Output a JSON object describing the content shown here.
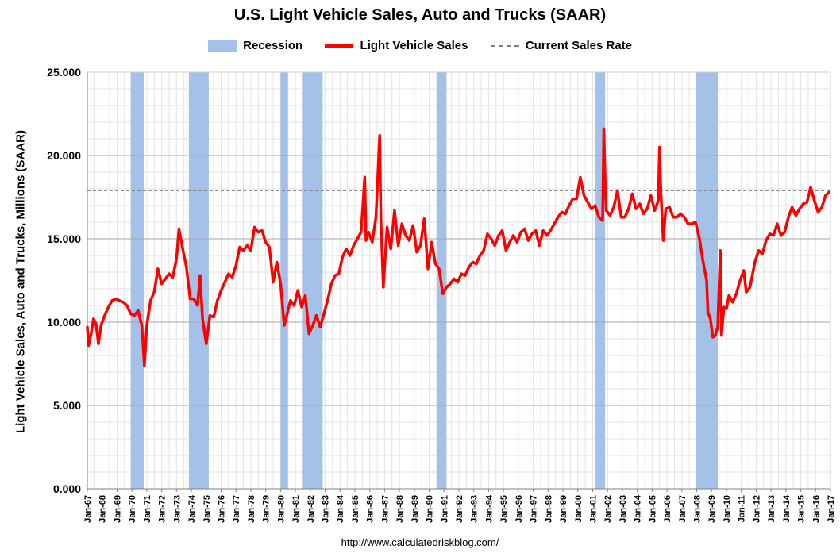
{
  "chart_data": {
    "type": "line",
    "title": "U.S. Light Vehicle Sales, Auto and Trucks (SAAR)",
    "ylabel": "Light Vehicle Sales, Auto and Trucks, Millions (SAAR)",
    "source": "http://www.calculatedriskblog.com/",
    "ylim": [
      0,
      25
    ],
    "xlim": [
      "1967-01",
      "2017-01"
    ],
    "y_ticks": [
      "0.000",
      "5.000",
      "10.000",
      "15.000",
      "20.000",
      "25.000"
    ],
    "x_ticks": [
      "Jan-67",
      "Jan-68",
      "Jan-69",
      "Jan-70",
      "Jan-71",
      "Jan-72",
      "Jan-73",
      "Jan-74",
      "Jan-75",
      "Jan-76",
      "Jan-77",
      "Jan-78",
      "Jan-79",
      "Jan-80",
      "Jan-81",
      "Jan-82",
      "Jan-83",
      "Jan-84",
      "Jan-85",
      "Jan-86",
      "Jan-87",
      "Jan-88",
      "Jan-89",
      "Jan-90",
      "Jan-91",
      "Jan-92",
      "Jan-93",
      "Jan-94",
      "Jan-95",
      "Jan-96",
      "Jan-97",
      "Jan-98",
      "Jan-99",
      "Jan-00",
      "Jan-01",
      "Jan-02",
      "Jan-03",
      "Jan-04",
      "Jan-05",
      "Jan-06",
      "Jan-07",
      "Jan-08",
      "Jan-09",
      "Jan-10",
      "Jan-11",
      "Jan-12",
      "Jan-13",
      "Jan-14",
      "Jan-15",
      "Jan-16",
      "Jan-17"
    ],
    "grid": true,
    "legend_position": "top",
    "legend": [
      "Recession",
      "Light Vehicle Sales",
      "Current Sales Rate"
    ],
    "colors": {
      "recession": "#a4c2e9",
      "sales": "#ff0000",
      "current": "#808080",
      "grid_major": "#a6a6a6",
      "grid_minor": "#e3e3e3"
    },
    "recessions": [
      {
        "start": "1969-12",
        "end": "1970-11"
      },
      {
        "start": "1973-11",
        "end": "1975-03"
      },
      {
        "start": "1980-01",
        "end": "1980-07"
      },
      {
        "start": "1981-07",
        "end": "1982-11"
      },
      {
        "start": "1990-07",
        "end": "1991-03"
      },
      {
        "start": "2001-03",
        "end": "2001-11"
      },
      {
        "start": "2007-12",
        "end": "2009-06"
      }
    ],
    "current_sales_rate": 17.9,
    "series": [
      {
        "name": "Light Vehicle Sales",
        "points": [
          [
            "1967-01",
            9.7
          ],
          [
            "1967-02",
            8.6
          ],
          [
            "1967-04",
            9.3
          ],
          [
            "1967-06",
            10.2
          ],
          [
            "1967-08",
            9.9
          ],
          [
            "1967-10",
            8.7
          ],
          [
            "1967-12",
            9.8
          ],
          [
            "1968-03",
            10.4
          ],
          [
            "1968-06",
            10.9
          ],
          [
            "1968-09",
            11.3
          ],
          [
            "1968-12",
            11.4
          ],
          [
            "1969-03",
            11.3
          ],
          [
            "1969-06",
            11.2
          ],
          [
            "1969-09",
            11.0
          ],
          [
            "1969-12",
            10.5
          ],
          [
            "1970-03",
            10.4
          ],
          [
            "1970-06",
            10.7
          ],
          [
            "1970-09",
            9.8
          ],
          [
            "1970-11",
            7.4
          ],
          [
            "1971-01",
            9.8
          ],
          [
            "1971-04",
            11.3
          ],
          [
            "1971-07",
            11.8
          ],
          [
            "1971-10",
            13.2
          ],
          [
            "1972-01",
            12.3
          ],
          [
            "1972-04",
            12.6
          ],
          [
            "1972-07",
            12.9
          ],
          [
            "1972-10",
            12.7
          ],
          [
            "1973-01",
            13.8
          ],
          [
            "1973-03",
            15.6
          ],
          [
            "1973-06",
            14.4
          ],
          [
            "1973-09",
            13.3
          ],
          [
            "1973-12",
            11.4
          ],
          [
            "1974-03",
            11.4
          ],
          [
            "1974-06",
            11.0
          ],
          [
            "1974-08",
            12.8
          ],
          [
            "1974-10",
            10.2
          ],
          [
            "1975-01",
            8.7
          ],
          [
            "1975-04",
            10.4
          ],
          [
            "1975-07",
            10.3
          ],
          [
            "1975-10",
            11.3
          ],
          [
            "1976-01",
            11.9
          ],
          [
            "1976-04",
            12.4
          ],
          [
            "1976-07",
            12.9
          ],
          [
            "1976-10",
            12.7
          ],
          [
            "1977-01",
            13.4
          ],
          [
            "1977-04",
            14.5
          ],
          [
            "1977-07",
            14.3
          ],
          [
            "1977-10",
            14.6
          ],
          [
            "1978-01",
            14.3
          ],
          [
            "1978-04",
            15.7
          ],
          [
            "1978-07",
            15.4
          ],
          [
            "1978-10",
            15.5
          ],
          [
            "1979-01",
            14.8
          ],
          [
            "1979-04",
            14.5
          ],
          [
            "1979-07",
            12.4
          ],
          [
            "1979-10",
            13.6
          ],
          [
            "1980-01",
            12.3
          ],
          [
            "1980-04",
            9.8
          ],
          [
            "1980-06",
            10.4
          ],
          [
            "1980-09",
            11.3
          ],
          [
            "1980-12",
            11.0
          ],
          [
            "1981-03",
            11.9
          ],
          [
            "1981-06",
            10.9
          ],
          [
            "1981-09",
            11.6
          ],
          [
            "1981-12",
            9.3
          ],
          [
            "1982-03",
            9.8
          ],
          [
            "1982-06",
            10.4
          ],
          [
            "1982-09",
            9.7
          ],
          [
            "1982-12",
            10.5
          ],
          [
            "1983-03",
            11.3
          ],
          [
            "1983-06",
            12.3
          ],
          [
            "1983-09",
            12.8
          ],
          [
            "1983-12",
            12.9
          ],
          [
            "1984-03",
            13.9
          ],
          [
            "1984-06",
            14.4
          ],
          [
            "1984-09",
            14.0
          ],
          [
            "1984-12",
            14.6
          ],
          [
            "1985-03",
            15.0
          ],
          [
            "1985-06",
            15.4
          ],
          [
            "1985-09",
            18.7
          ],
          [
            "1985-10",
            14.9
          ],
          [
            "1985-12",
            15.4
          ],
          [
            "1986-03",
            14.8
          ],
          [
            "1986-06",
            16.3
          ],
          [
            "1986-09",
            21.2
          ],
          [
            "1986-10",
            16.2
          ],
          [
            "1986-12",
            12.1
          ],
          [
            "1987-03",
            15.7
          ],
          [
            "1987-06",
            14.4
          ],
          [
            "1987-09",
            16.7
          ],
          [
            "1987-12",
            14.6
          ],
          [
            "1988-03",
            15.9
          ],
          [
            "1988-06",
            15.2
          ],
          [
            "1988-09",
            14.9
          ],
          [
            "1988-12",
            15.8
          ],
          [
            "1989-03",
            14.2
          ],
          [
            "1989-06",
            14.6
          ],
          [
            "1989-09",
            16.2
          ],
          [
            "1989-12",
            13.2
          ],
          [
            "1990-03",
            14.8
          ],
          [
            "1990-06",
            13.5
          ],
          [
            "1990-09",
            13.2
          ],
          [
            "1990-12",
            11.7
          ],
          [
            "1991-03",
            12.1
          ],
          [
            "1991-06",
            12.3
          ],
          [
            "1991-09",
            12.6
          ],
          [
            "1991-12",
            12.4
          ],
          [
            "1992-03",
            12.9
          ],
          [
            "1992-06",
            12.8
          ],
          [
            "1992-09",
            13.3
          ],
          [
            "1992-12",
            13.6
          ],
          [
            "1993-03",
            13.5
          ],
          [
            "1993-06",
            14.0
          ],
          [
            "1993-09",
            14.3
          ],
          [
            "1993-12",
            15.3
          ],
          [
            "1994-03",
            15.0
          ],
          [
            "1994-06",
            14.6
          ],
          [
            "1994-09",
            15.2
          ],
          [
            "1994-12",
            15.5
          ],
          [
            "1995-03",
            14.3
          ],
          [
            "1995-06",
            14.8
          ],
          [
            "1995-09",
            15.2
          ],
          [
            "1995-12",
            14.8
          ],
          [
            "1996-03",
            15.4
          ],
          [
            "1996-06",
            15.6
          ],
          [
            "1996-09",
            14.9
          ],
          [
            "1996-12",
            15.3
          ],
          [
            "1997-03",
            15.5
          ],
          [
            "1997-06",
            14.6
          ],
          [
            "1997-09",
            15.5
          ],
          [
            "1997-12",
            15.2
          ],
          [
            "1998-03",
            15.5
          ],
          [
            "1998-06",
            15.9
          ],
          [
            "1998-09",
            16.3
          ],
          [
            "1998-12",
            16.6
          ],
          [
            "1999-03",
            16.5
          ],
          [
            "1999-06",
            17.0
          ],
          [
            "1999-09",
            17.4
          ],
          [
            "1999-12",
            17.4
          ],
          [
            "2000-03",
            18.7
          ],
          [
            "2000-06",
            17.6
          ],
          [
            "2000-09",
            17.2
          ],
          [
            "2000-12",
            16.8
          ],
          [
            "2001-03",
            17.0
          ],
          [
            "2001-06",
            16.3
          ],
          [
            "2001-09",
            16.1
          ],
          [
            "2001-10",
            21.6
          ],
          [
            "2001-11",
            18.6
          ],
          [
            "2001-12",
            16.7
          ],
          [
            "2002-03",
            16.4
          ],
          [
            "2002-06",
            16.9
          ],
          [
            "2002-09",
            17.9
          ],
          [
            "2002-12",
            16.3
          ],
          [
            "2003-03",
            16.3
          ],
          [
            "2003-06",
            16.8
          ],
          [
            "2003-09",
            17.7
          ],
          [
            "2003-12",
            16.8
          ],
          [
            "2004-03",
            17.1
          ],
          [
            "2004-06",
            16.5
          ],
          [
            "2004-09",
            16.8
          ],
          [
            "2004-12",
            17.6
          ],
          [
            "2005-03",
            16.7
          ],
          [
            "2005-06",
            17.3
          ],
          [
            "2005-07",
            20.5
          ],
          [
            "2005-08",
            17.9
          ],
          [
            "2005-10",
            14.9
          ],
          [
            "2005-12",
            16.8
          ],
          [
            "2006-03",
            16.9
          ],
          [
            "2006-06",
            16.3
          ],
          [
            "2006-09",
            16.3
          ],
          [
            "2006-12",
            16.5
          ],
          [
            "2007-03",
            16.3
          ],
          [
            "2007-06",
            15.9
          ],
          [
            "2007-09",
            15.9
          ],
          [
            "2007-12",
            16.0
          ],
          [
            "2008-03",
            15.1
          ],
          [
            "2008-06",
            13.7
          ],
          [
            "2008-09",
            12.5
          ],
          [
            "2008-10",
            10.6
          ],
          [
            "2008-12",
            10.2
          ],
          [
            "2009-02",
            9.1
          ],
          [
            "2009-04",
            9.2
          ],
          [
            "2009-06",
            9.7
          ],
          [
            "2009-08",
            14.3
          ],
          [
            "2009-09",
            9.2
          ],
          [
            "2009-11",
            10.9
          ],
          [
            "2010-01",
            10.8
          ],
          [
            "2010-03",
            11.6
          ],
          [
            "2010-06",
            11.2
          ],
          [
            "2010-09",
            11.7
          ],
          [
            "2010-12",
            12.5
          ],
          [
            "2011-03",
            13.1
          ],
          [
            "2011-05",
            11.8
          ],
          [
            "2011-08",
            12.1
          ],
          [
            "2011-12",
            13.6
          ],
          [
            "2012-03",
            14.3
          ],
          [
            "2012-06",
            14.1
          ],
          [
            "2012-09",
            14.9
          ],
          [
            "2012-12",
            15.3
          ],
          [
            "2013-03",
            15.2
          ],
          [
            "2013-06",
            15.9
          ],
          [
            "2013-09",
            15.2
          ],
          [
            "2013-12",
            15.4
          ],
          [
            "2014-03",
            16.3
          ],
          [
            "2014-06",
            16.9
          ],
          [
            "2014-09",
            16.4
          ],
          [
            "2014-12",
            16.8
          ],
          [
            "2015-03",
            17.1
          ],
          [
            "2015-06",
            17.2
          ],
          [
            "2015-09",
            18.1
          ],
          [
            "2015-12",
            17.3
          ],
          [
            "2016-03",
            16.6
          ],
          [
            "2016-06",
            16.9
          ],
          [
            "2016-09",
            17.6
          ],
          [
            "2016-12",
            17.8
          ]
        ]
      }
    ]
  }
}
